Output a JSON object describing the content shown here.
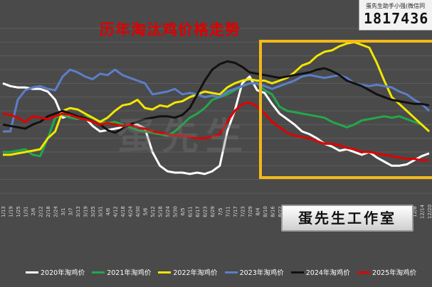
{
  "title": "历年淘汰鸡价格走势",
  "badge": {
    "caption": "蛋先生助手小强(微信同",
    "number": "1817436"
  },
  "watermark": "蛋先生",
  "studio_label": "蛋先生工作室",
  "chart_data": {
    "type": "line",
    "title": "历年淘汰鸡价格走势",
    "grid": true,
    "legend_position": "bottom",
    "x_tick_labels": [
      "1/13",
      "1/19",
      "1/25",
      "1/31",
      "2/6",
      "2/12",
      "2/18",
      "2/24",
      "3/1",
      "3/7",
      "3/13",
      "3/19",
      "3/25",
      "3/31",
      "4/6",
      "4/12",
      "4/18",
      "4/24",
      "4/30",
      "5/6",
      "5/12",
      "5/18",
      "5/24",
      "5/30",
      "6/5",
      "6/11",
      "6/17",
      "6/23",
      "6/29",
      "7/5",
      "7/11",
      "7/17",
      "7/23",
      "7/29",
      "8/4",
      "8/10",
      "8/16",
      "8/22",
      "8/28",
      "9/3",
      "9/9",
      "9/15",
      "9/21",
      "9/27",
      "10/3",
      "10/9",
      "10/15",
      "10/21",
      "10/27",
      "11/2",
      "11/8",
      "11/14",
      "11/20",
      "11/26",
      "12/2",
      "12/8",
      "12/14",
      "12/20"
    ],
    "series": [
      {
        "name": "2020年淘鸡价",
        "color": "#ffffff",
        "values": [
          0.8,
          0.78,
          0.77,
          0.77,
          0.76,
          0.76,
          0.74,
          0.68,
          0.55,
          0.57,
          0.56,
          0.55,
          0.49,
          0.45,
          0.46,
          0.47,
          0.48,
          0.5,
          0.5,
          0.47,
          0.3,
          0.2,
          0.16,
          0.15,
          0.15,
          0.14,
          0.15,
          0.14,
          0.16,
          0.2,
          0.45,
          0.6,
          0.8,
          0.85,
          0.75,
          0.73,
          0.65,
          0.58,
          0.54,
          0.5,
          0.45,
          0.43,
          0.4,
          0.36,
          0.34,
          0.31,
          0.32,
          0.3,
          0.28,
          0.3,
          0.26,
          0.23,
          0.2,
          0.2,
          0.21,
          0.24,
          0.27,
          0.29
        ]
      },
      {
        "name": "2021年淘鸡价",
        "color": "#22a84a",
        "values": [
          0.3,
          0.3,
          0.31,
          0.32,
          0.28,
          0.27,
          0.4,
          0.55,
          0.57,
          0.55,
          0.54,
          0.56,
          0.55,
          0.52,
          0.51,
          0.52,
          0.5,
          0.48,
          0.46,
          0.45,
          0.44,
          0.43,
          0.42,
          0.45,
          0.5,
          0.55,
          0.58,
          0.62,
          0.68,
          0.7,
          0.72,
          0.75,
          0.78,
          0.8,
          0.8,
          0.75,
          0.72,
          0.63,
          0.6,
          0.59,
          0.58,
          0.57,
          0.56,
          0.55,
          0.52,
          0.5,
          0.48,
          0.5,
          0.53,
          0.54,
          0.55,
          0.56,
          0.55,
          0.56,
          0.54,
          0.52,
          0.5,
          0.45
        ]
      },
      {
        "name": "2022年淘鸡价",
        "color": "#f3e600",
        "values": [
          0.28,
          0.28,
          0.29,
          0.3,
          0.31,
          0.32,
          0.4,
          0.45,
          0.6,
          0.62,
          0.61,
          0.58,
          0.55,
          0.52,
          0.55,
          0.6,
          0.64,
          0.65,
          0.68,
          0.62,
          0.61,
          0.64,
          0.63,
          0.66,
          0.67,
          0.7,
          0.72,
          0.74,
          0.73,
          0.72,
          0.77,
          0.8,
          0.82,
          0.83,
          0.82,
          0.82,
          0.8,
          0.82,
          0.84,
          0.88,
          0.93,
          0.95,
          1.0,
          1.03,
          1.04,
          1.07,
          1.09,
          1.1,
          1.08,
          1.06,
          0.95,
          0.82,
          0.7,
          0.65,
          0.6,
          0.55,
          0.5,
          0.45
        ]
      },
      {
        "name": "2023年淘鸡价",
        "color": "#5b7fc7",
        "values": [
          0.45,
          0.45,
          0.68,
          0.75,
          0.77,
          0.78,
          0.76,
          0.75,
          0.85,
          0.9,
          0.88,
          0.85,
          0.83,
          0.87,
          0.86,
          0.9,
          0.86,
          0.84,
          0.82,
          0.8,
          0.72,
          0.73,
          0.74,
          0.76,
          0.72,
          0.73,
          0.72,
          0.7,
          0.71,
          0.7,
          0.74,
          0.76,
          0.78,
          0.8,
          0.8,
          0.78,
          0.76,
          0.78,
          0.8,
          0.82,
          0.85,
          0.86,
          0.85,
          0.84,
          0.85,
          0.86,
          0.84,
          0.8,
          0.79,
          0.78,
          0.79,
          0.78,
          0.77,
          0.74,
          0.72,
          0.68,
          0.65,
          0.6
        ]
      },
      {
        "name": "2024年淘鸡价",
        "color": "#111111",
        "values": [
          0.5,
          0.49,
          0.48,
          0.47,
          0.5,
          0.52,
          0.56,
          0.58,
          0.6,
          0.58,
          0.56,
          0.55,
          0.52,
          0.5,
          0.46,
          0.44,
          0.47,
          0.5,
          0.52,
          0.54,
          0.55,
          0.56,
          0.56,
          0.55,
          0.57,
          0.62,
          0.72,
          0.82,
          0.9,
          0.94,
          0.96,
          0.95,
          0.92,
          0.88,
          0.87,
          0.86,
          0.85,
          0.84,
          0.85,
          0.86,
          0.87,
          0.88,
          0.9,
          0.91,
          0.89,
          0.86,
          0.82,
          0.8,
          0.78,
          0.75,
          0.72,
          0.7,
          0.68,
          0.67,
          0.66,
          0.65,
          0.65,
          0.64
        ]
      },
      {
        "name": "2025年淘鸡价",
        "color": "#e00000",
        "values": [
          0.58,
          0.57,
          0.55,
          0.52,
          0.56,
          0.55,
          0.54,
          0.56,
          0.58,
          0.57,
          0.55,
          0.54,
          0.52,
          0.5,
          0.51,
          0.5,
          0.49,
          0.5,
          0.48,
          0.47,
          0.45,
          0.44,
          0.43,
          0.42,
          0.42,
          0.41,
          0.4,
          0.4,
          0.41,
          0.43,
          0.52,
          0.6,
          0.65,
          0.66,
          0.63,
          0.58,
          0.52,
          0.48,
          0.44,
          0.42,
          0.41,
          0.4,
          0.38,
          0.36,
          0.36,
          0.35,
          0.33,
          0.32,
          0.3,
          0.3,
          0.29,
          0.28,
          0.27,
          0.26,
          0.25,
          0.25,
          0.24,
          0.24
        ]
      }
    ]
  }
}
